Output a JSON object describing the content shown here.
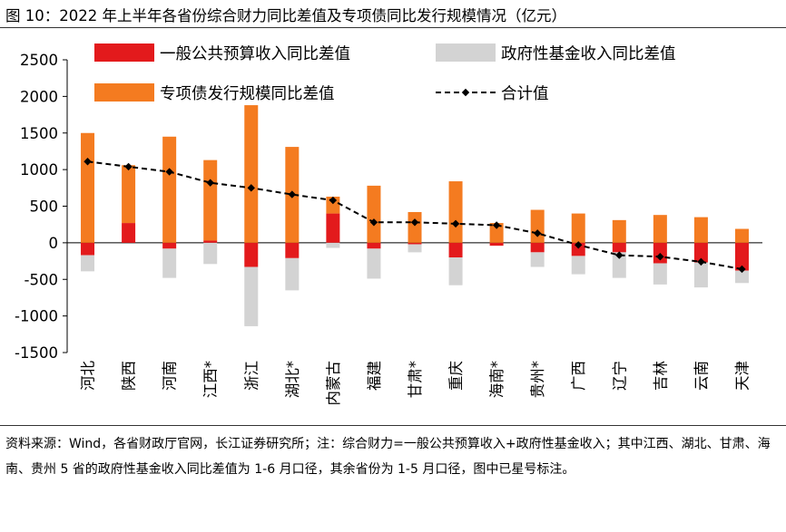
{
  "title": "图 10：2022 年上半年各省份综合财力同比差值及专项债同比发行规模情况（亿元）",
  "source_note": "资料来源：Wind，各省财政厅官网，长江证券研究所；注：综合财力=一般公共预算收入+政府性基金收入；其中江西、湖北、甘肃、海南、贵州 5 省的政府性基金收入同比差值为 1-6 月口径，其余省份为 1-5 月口径，图中已星号标注。",
  "colors": {
    "general": "#e31a1c",
    "fund": "#d3d3d3",
    "bond": "#f47b20",
    "total": "#000000"
  },
  "chart_data": {
    "type": "bar",
    "stacked": true,
    "unit": "亿元",
    "ylim": [
      -1500,
      2500
    ],
    "yticks": [
      2500,
      2000,
      1500,
      1000,
      500,
      0,
      -500,
      -1000,
      -1500
    ],
    "legend_position": "top",
    "categories": [
      "河北",
      "陕西",
      "河南",
      "江西*",
      "浙江",
      "湖北*",
      "内蒙古",
      "福建",
      "甘肃*",
      "重庆",
      "海南*",
      "贵州*",
      "广西",
      "辽宁",
      "吉林",
      "云南",
      "天津"
    ],
    "series": [
      {
        "name": "一般公共预算收入同比差值",
        "kind": "bar",
        "color": "#e31a1c",
        "values": [
          -170,
          270,
          -80,
          30,
          -330,
          -210,
          400,
          -80,
          -20,
          -200,
          -40,
          -130,
          -180,
          -130,
          -280,
          -270,
          -380
        ]
      },
      {
        "name": "政府性基金收入同比差值",
        "kind": "bar",
        "color": "#d3d3d3",
        "values": [
          -220,
          0,
          -400,
          -290,
          -810,
          -440,
          -70,
          -410,
          -110,
          -380,
          0,
          -200,
          -250,
          -350,
          -290,
          -340,
          -170
        ]
      },
      {
        "name": "专项债发行规模同比差值",
        "kind": "bar",
        "color": "#f47b20",
        "values": [
          1500,
          790,
          1450,
          1100,
          1880,
          1310,
          230,
          780,
          420,
          840,
          270,
          450,
          400,
          310,
          380,
          350,
          190
        ]
      },
      {
        "name": "合计值",
        "kind": "line",
        "color": "#000000",
        "values": [
          1110,
          1040,
          970,
          820,
          750,
          660,
          580,
          280,
          280,
          260,
          240,
          130,
          -30,
          -170,
          -190,
          -260,
          -360
        ]
      }
    ]
  }
}
